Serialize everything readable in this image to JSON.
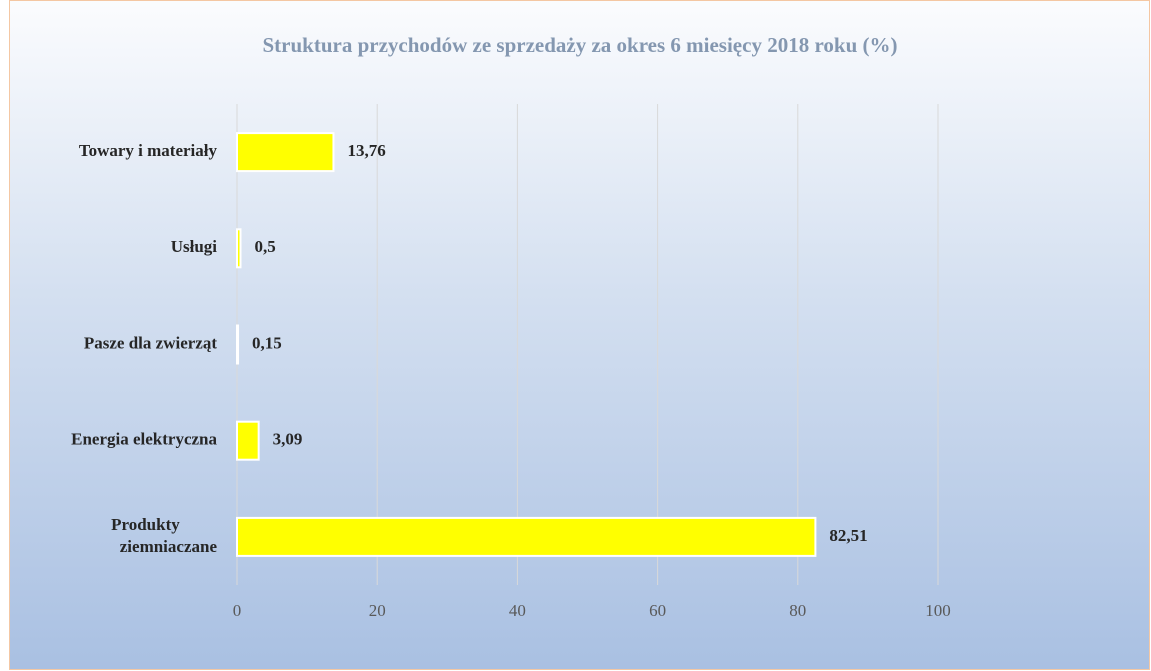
{
  "chart_data": {
    "type": "bar",
    "orientation": "horizontal",
    "title": "Struktura przychodów ze sprzedaży za okres 6 miesięcy 2018 roku (%)",
    "categories": [
      "Towary i materiały",
      "Usługi",
      "Pasze dla zwierząt",
      "Energia elektryczna",
      "Produkty ziemniaczane"
    ],
    "values": [
      13.76,
      0.5,
      0.15,
      3.09,
      82.51
    ],
    "value_labels": [
      "13,76",
      "0,5",
      "0,15",
      "3,09",
      "82,51"
    ],
    "color": "#ffff00",
    "xlim": [
      0,
      100
    ],
    "xticks": [
      0,
      20,
      40,
      60,
      80,
      100
    ],
    "grid": true
  }
}
